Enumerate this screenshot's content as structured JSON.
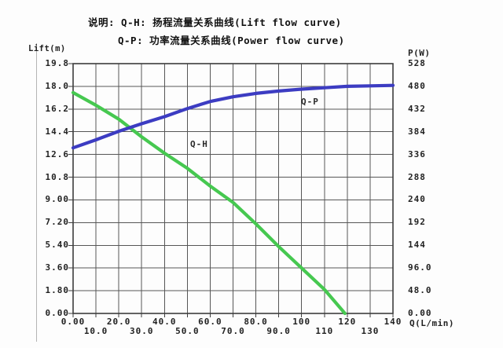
{
  "title": {
    "line1": "说明: Q-H: 扬程流量关系曲线(Lift flow curve)",
    "line2": "Q-P: 功率流量关系曲线(Power flow curve)"
  },
  "chart_data": {
    "type": "line",
    "grid": true,
    "legend": "inline-labels",
    "x_axis": {
      "label": "Q(L/min)",
      "range": [
        0,
        140
      ],
      "tick_step": 10,
      "tick_labels": [
        "0.00",
        "10.0",
        "20.0",
        "30.0",
        "40.0",
        "50.0",
        "60.0",
        "70.0",
        "80.0",
        "90.0",
        "100",
        "110",
        "120",
        "130",
        "140"
      ]
    },
    "left_axis": {
      "label": "Lift(m)",
      "range": [
        0,
        19.8
      ],
      "tick_step": 1.8,
      "tick_labels": [
        "19.8",
        "18.0",
        "16.2",
        "14.4",
        "12.6",
        "10.8",
        "9.00",
        "7.20",
        "5.40",
        "3.60",
        "1.80",
        "0.00"
      ]
    },
    "right_axis": {
      "label": "P(W)",
      "range": [
        0,
        528
      ],
      "tick_step": 48,
      "tick_labels": [
        "528",
        "480",
        "432",
        "384",
        "336",
        "288",
        "240",
        "192",
        "144",
        "96.0",
        "48.0",
        "0.00"
      ]
    },
    "series": [
      {
        "name": "Q-H",
        "description": "Lift flow curve",
        "axis": "left",
        "color": "#46c850",
        "x": [
          0,
          10,
          20,
          30,
          40,
          50,
          60,
          70,
          80,
          90,
          100,
          110,
          119
        ],
        "y": [
          17.5,
          16.5,
          15.4,
          14.0,
          12.7,
          11.5,
          10.1,
          8.8,
          7.1,
          5.3,
          3.6,
          1.9,
          0
        ]
      },
      {
        "name": "Q-P",
        "description": "Power flow curve",
        "axis": "right",
        "color": "#3c3cc2",
        "x": [
          0,
          10,
          20,
          30,
          40,
          50,
          60,
          70,
          80,
          90,
          100,
          110,
          120,
          130,
          140
        ],
        "y": [
          350,
          367,
          385,
          401,
          416,
          433,
          448,
          458,
          465,
          470,
          474,
          477,
          480,
          481,
          482
        ]
      }
    ]
  },
  "colors": {
    "grid": "#565656",
    "plot_border": "#3d3d3d",
    "background": "#fdfdfd",
    "qh_green": "#46c850",
    "qp_blue": "#3c3cc2"
  }
}
